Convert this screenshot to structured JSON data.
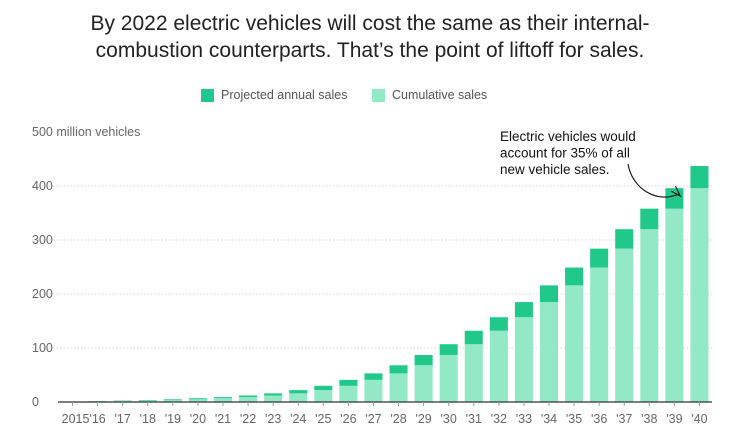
{
  "title": {
    "line1": "By 2022 electric vehicles will cost the same as their internal-",
    "line2": "combustion counterparts. That’s the point of liftoff for sales."
  },
  "legend": {
    "projected_label": "Projected annual sales",
    "cumulative_label": "Cumulative sales"
  },
  "colors": {
    "projected": "#20c98a",
    "cumulative": "#93e9c6"
  },
  "chart_data": {
    "type": "bar",
    "stacked": true,
    "categories": [
      "2015",
      "'16",
      "'17",
      "'18",
      "'19",
      "'20",
      "'21",
      "'22",
      "'23",
      "'24",
      "'25",
      "'26",
      "'27",
      "'28",
      "'29",
      "'30",
      "'31",
      "'32",
      "'33",
      "'34",
      "'35",
      "'36",
      "'37",
      "'38",
      "'39",
      "'40"
    ],
    "series": [
      {
        "name": "Cumulative sales",
        "values": [
          0.5,
          1,
          1.5,
          2.5,
          3.5,
          5,
          7,
          9,
          12,
          16,
          22,
          30,
          41,
          53,
          68,
          87,
          107,
          132,
          157,
          185,
          216,
          249,
          284,
          320,
          358,
          396
        ]
      },
      {
        "name": "Projected annual sales",
        "values": [
          0.5,
          0.5,
          1,
          1,
          1.5,
          2,
          2,
          3,
          4,
          6,
          8,
          11,
          12,
          15,
          19,
          20,
          25,
          25,
          28,
          31,
          33,
          35,
          36,
          38,
          38,
          41
        ]
      }
    ],
    "ylabel_top": "500 million vehicles",
    "yticks": [
      0,
      100,
      200,
      300,
      400
    ],
    "ylim": [
      0,
      500
    ],
    "grid": true,
    "annotation": {
      "lines": [
        "Electric vehicles would",
        "account for 35% of all",
        "new vehicle sales."
      ],
      "target_category": "'39"
    }
  }
}
